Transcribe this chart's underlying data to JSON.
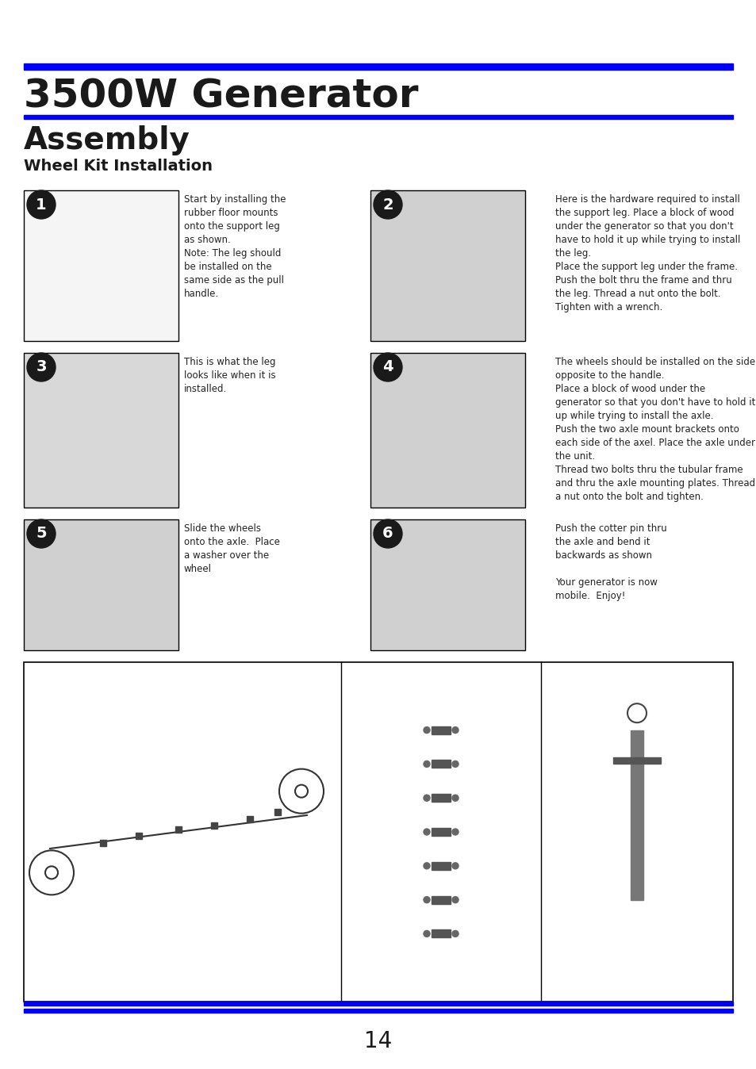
{
  "title": "3500W Generator",
  "section": "Assembly",
  "subsection": "Wheel Kit Installation",
  "page_number": "14",
  "blue_color": "#0000FF",
  "title_color": "#1a1a1a",
  "text_color": "#222222",
  "bg_color": "#FFFFFF",
  "border_color": "#000000",
  "step_bg": "#1a1a1a",
  "step_texts": [
    {
      "step": "1",
      "text": "Start by installing the\nrubber floor mounts\nonto the support leg\nas shown.\nNote: The leg should\nbe installed on the\nsame side as the pull\nhandle."
    },
    {
      "step": "2",
      "text": "Here is the hardware required to install\nthe support leg. Place a block of wood\nunder the generator so that you don't\nhave to hold it up while trying to install\nthe leg.\nPlace the support leg under the frame.\nPush the bolt thru the frame and thru\nthe leg. Thread a nut onto the bolt.\nTighten with a wrench."
    },
    {
      "step": "3",
      "text": "This is what the leg\nlooks like when it is\ninstalled."
    },
    {
      "step": "4",
      "text": "The wheels should be installed on the side\nopposite to the handle.\nPlace a block of wood under the\ngenerator so that you don't have to hold it\nup while trying to install the axle.\nPush the two axle mount brackets onto\neach side of the axel. Place the axle under\nthe unit.\nThread two bolts thru the tubular frame\nand thru the axle mounting plates. Thread\na nut onto the bolt and tighten."
    },
    {
      "step": "5",
      "text": "Slide the wheels\nonto the axle.  Place\na washer over the\nwheel"
    },
    {
      "step": "6",
      "text": "Push the cotter pin thru\nthe axle and bend it\nbackwards as shown\n\nYour generator is now\nmobile.  Enjoy!"
    }
  ]
}
